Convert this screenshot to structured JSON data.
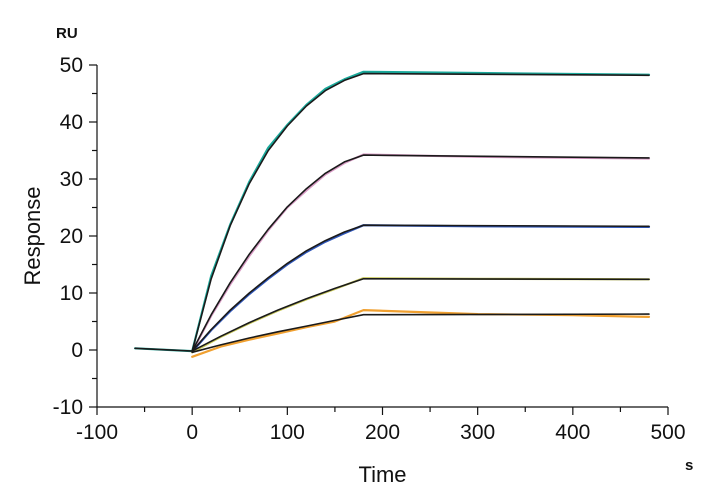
{
  "chart_data": {
    "type": "line",
    "xlabel": "Time",
    "ylabel": "Response",
    "x_unit": "s",
    "y_unit": "RU",
    "xlim": [
      -100,
      500
    ],
    "ylim": [
      -10,
      50
    ],
    "x_ticks": [
      -100,
      0,
      100,
      200,
      300,
      400,
      500
    ],
    "y_ticks": [
      -10,
      0,
      10,
      20,
      30,
      40,
      50
    ],
    "grid": false,
    "legend": "none",
    "series": [
      {
        "color": "#1aa89a",
        "points": [
          [
            -60,
            0.3
          ],
          [
            0,
            -0.2
          ],
          [
            20,
            13
          ],
          [
            40,
            22
          ],
          [
            60,
            29.5
          ],
          [
            80,
            35.5
          ],
          [
            100,
            39.5
          ],
          [
            120,
            43
          ],
          [
            140,
            45.8
          ],
          [
            160,
            47.5
          ],
          [
            180,
            48.8
          ],
          [
            300,
            48.6
          ],
          [
            480,
            48.3
          ]
        ]
      },
      {
        "color": "#d89ac4",
        "points": [
          [
            0,
            -0.3
          ],
          [
            20,
            6
          ],
          [
            40,
            11.5
          ],
          [
            60,
            16.5
          ],
          [
            80,
            21
          ],
          [
            100,
            25
          ],
          [
            120,
            28
          ],
          [
            140,
            30.8
          ],
          [
            160,
            32.8
          ],
          [
            180,
            34.3
          ],
          [
            300,
            33.9
          ],
          [
            480,
            33.6
          ]
        ]
      },
      {
        "color": "#2e55b8",
        "points": [
          [
            0,
            -0.3
          ],
          [
            20,
            3.5
          ],
          [
            40,
            6.8
          ],
          [
            60,
            9.8
          ],
          [
            80,
            12.5
          ],
          [
            100,
            15
          ],
          [
            120,
            17.2
          ],
          [
            140,
            19
          ],
          [
            160,
            20.5
          ],
          [
            180,
            21.9
          ],
          [
            300,
            21.7
          ],
          [
            480,
            21.6
          ]
        ]
      },
      {
        "color": "#c9c95a",
        "points": [
          [
            0,
            -0.4
          ],
          [
            30,
            2.3
          ],
          [
            60,
            4.7
          ],
          [
            90,
            6.9
          ],
          [
            120,
            8.9
          ],
          [
            150,
            10.7
          ],
          [
            180,
            12.6
          ],
          [
            300,
            12.5
          ],
          [
            480,
            12.4
          ]
        ]
      },
      {
        "color": "#f0a030",
        "points": [
          [
            0,
            -1.2
          ],
          [
            30,
            0.6
          ],
          [
            60,
            1.8
          ],
          [
            90,
            2.9
          ],
          [
            120,
            4
          ],
          [
            150,
            5
          ],
          [
            180,
            7
          ],
          [
            300,
            6.3
          ],
          [
            400,
            6.1
          ],
          [
            480,
            5.8
          ]
        ]
      },
      {
        "color": "#1a1a1a",
        "points": [
          [
            -60,
            0.3
          ],
          [
            0,
            -0.2
          ],
          [
            20,
            12.5
          ],
          [
            40,
            21.8
          ],
          [
            60,
            29.2
          ],
          [
            80,
            35
          ],
          [
            100,
            39.3
          ],
          [
            120,
            42.8
          ],
          [
            140,
            45.5
          ],
          [
            160,
            47.3
          ],
          [
            180,
            48.5
          ],
          [
            480,
            48.2
          ]
        ]
      },
      {
        "color": "#1a1a1a",
        "points": [
          [
            0,
            -0.2
          ],
          [
            20,
            6.2
          ],
          [
            40,
            11.8
          ],
          [
            60,
            16.8
          ],
          [
            80,
            21.2
          ],
          [
            100,
            25.1
          ],
          [
            120,
            28.3
          ],
          [
            140,
            31
          ],
          [
            160,
            33
          ],
          [
            180,
            34.2
          ],
          [
            480,
            33.7
          ]
        ]
      },
      {
        "color": "#1a1a1a",
        "points": [
          [
            0,
            -0.2
          ],
          [
            20,
            3.6
          ],
          [
            40,
            7
          ],
          [
            60,
            10
          ],
          [
            80,
            12.7
          ],
          [
            100,
            15.2
          ],
          [
            120,
            17.4
          ],
          [
            140,
            19.2
          ],
          [
            160,
            20.7
          ],
          [
            180,
            21.9
          ],
          [
            480,
            21.7
          ]
        ]
      },
      {
        "color": "#1a1a1a",
        "points": [
          [
            0,
            -0.2
          ],
          [
            30,
            2.4
          ],
          [
            60,
            4.8
          ],
          [
            90,
            7
          ],
          [
            120,
            9
          ],
          [
            150,
            10.8
          ],
          [
            180,
            12.5
          ],
          [
            480,
            12.4
          ]
        ]
      },
      {
        "color": "#1a1a1a",
        "points": [
          [
            0,
            -0.4
          ],
          [
            30,
            0.9
          ],
          [
            60,
            2.1
          ],
          [
            90,
            3.2
          ],
          [
            120,
            4.2
          ],
          [
            150,
            5.2
          ],
          [
            180,
            6.2
          ],
          [
            480,
            6.3
          ]
        ]
      }
    ]
  }
}
